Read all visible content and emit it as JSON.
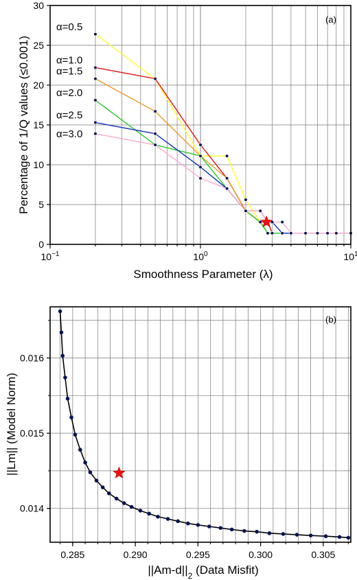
{
  "chart_data": [
    {
      "panel_label": "(a)",
      "type": "line",
      "xscale": "log",
      "xlim": [
        0.1,
        10
      ],
      "ylim": [
        0,
        30
      ],
      "xlabel": "Smoothness Parameter (λ)",
      "ylabel": "Percentage of 1/Q values (≤0.001)",
      "xticks": [
        {
          "v": 0.1,
          "base": "10",
          "exp": "−1"
        },
        {
          "v": 1,
          "base": "10",
          "exp": "0"
        },
        {
          "v": 10,
          "base": "10",
          "exp": "1"
        }
      ],
      "yticks": [
        "0",
        "5",
        "10",
        "15",
        "20",
        "25",
        "30"
      ],
      "grid": true,
      "series": [
        {
          "name": "α=0.5",
          "color": "#ffff33",
          "x": [
            0.2,
            0.5,
            1.0,
            1.5,
            2.0,
            2.5,
            2.8,
            3.0,
            3.5,
            4.0,
            5.0,
            6.0,
            7.0,
            8.0,
            10.0
          ],
          "y": [
            26.4,
            20.8,
            11.1,
            11.1,
            5.6,
            2.8,
            1.4,
            1.4,
            1.4,
            1.4,
            1.4,
            1.4,
            1.4,
            1.4,
            1.4
          ]
        },
        {
          "name": "α=1.0",
          "color": "#dd1111",
          "x": [
            0.2,
            0.5,
            1.0,
            1.5,
            2.0,
            2.5,
            2.8,
            3.0,
            3.5,
            4.0
          ],
          "y": [
            22.2,
            20.8,
            12.5,
            8.3,
            4.2,
            2.8,
            2.8,
            1.4,
            1.4,
            1.4
          ]
        },
        {
          "name": "α=1.5",
          "color": "#ee9922",
          "x": [
            0.2,
            0.5,
            1.0,
            1.5,
            2.0,
            2.5,
            2.8,
            3.0,
            3.5,
            4.0
          ],
          "y": [
            20.8,
            16.7,
            11.1,
            8.3,
            4.2,
            2.8,
            1.4,
            1.4,
            1.4,
            1.4
          ]
        },
        {
          "name": "α=2.0",
          "color": "#22cc22",
          "x": [
            0.2,
            0.5,
            1.0,
            1.5,
            2.0,
            2.5,
            2.8,
            3.0,
            3.5,
            4.0
          ],
          "y": [
            18.1,
            12.5,
            11.1,
            7.0,
            4.2,
            2.8,
            1.4,
            1.4,
            1.4,
            1.4
          ]
        },
        {
          "name": "α=2.5",
          "color": "#1133bb",
          "x": [
            0.2,
            0.5,
            1.0,
            1.5,
            2.0,
            2.5,
            2.8,
            3.0,
            3.5,
            4.0
          ],
          "y": [
            15.3,
            13.9,
            9.7,
            7.0,
            4.2,
            4.2,
            2.8,
            2.8,
            1.4,
            1.4
          ]
        },
        {
          "name": "α=3.0",
          "color": "#ffaacc",
          "x": [
            0.2,
            0.5,
            1.0,
            1.5,
            2.0,
            2.5,
            2.8,
            3.0,
            3.5,
            4.0,
            5.0,
            6.0,
            7.0,
            8.0,
            10.0
          ],
          "y": [
            13.9,
            12.5,
            8.3,
            7.0,
            4.2,
            4.2,
            2.8,
            2.8,
            2.8,
            1.4,
            1.4,
            1.4,
            1.4,
            1.4,
            1.4
          ]
        }
      ],
      "star": {
        "x": 2.75,
        "y": 2.8,
        "color": "#ee1111"
      }
    },
    {
      "panel_label": "(b)",
      "type": "line",
      "xlim": [
        0.2832,
        0.3072
      ],
      "ylim": [
        0.01355,
        0.01668
      ],
      "xlabel": "||Am-d||",
      "xlabel_sub": "2",
      "xlabel_tail": " (Data Misfit)",
      "ylabel": "||Lm|| (Model Norm)",
      "xticks": [
        "0.285",
        "0.290",
        "0.295",
        "0.300",
        "0.305"
      ],
      "xtick_values": [
        0.285,
        0.29,
        0.295,
        0.3,
        0.305
      ],
      "yticks": [
        "0.014",
        "0.015",
        "0.016"
      ],
      "ytick_values": [
        0.014,
        0.015,
        0.016
      ],
      "grid": true,
      "line_color": "#000000",
      "point_color": "#0a1450",
      "x": [
        0.284,
        0.2841,
        0.2842,
        0.2844,
        0.2846,
        0.2849,
        0.2852,
        0.2856,
        0.286,
        0.2864,
        0.2869,
        0.2874,
        0.2879,
        0.2885,
        0.2891,
        0.2897,
        0.2904,
        0.2911,
        0.2918,
        0.2926,
        0.2934,
        0.2942,
        0.295,
        0.2959,
        0.2968,
        0.2977,
        0.2987,
        0.2997,
        0.3007,
        0.3018,
        0.3029,
        0.304,
        0.3052,
        0.3063,
        0.307
      ],
      "y": [
        0.01662,
        0.01634,
        0.01603,
        0.01574,
        0.01546,
        0.01521,
        0.01498,
        0.01478,
        0.01461,
        0.01448,
        0.01437,
        0.01428,
        0.0142,
        0.01413,
        0.01407,
        0.01402,
        0.01397,
        0.01393,
        0.01389,
        0.01386,
        0.01383,
        0.0138,
        0.01378,
        0.01376,
        0.01374,
        0.01372,
        0.0137,
        0.01369,
        0.01367,
        0.01366,
        0.01365,
        0.01364,
        0.01363,
        0.01362,
        0.01361
      ],
      "star": {
        "x": 0.2887,
        "y": 0.01447,
        "color": "#ee1111"
      }
    }
  ]
}
